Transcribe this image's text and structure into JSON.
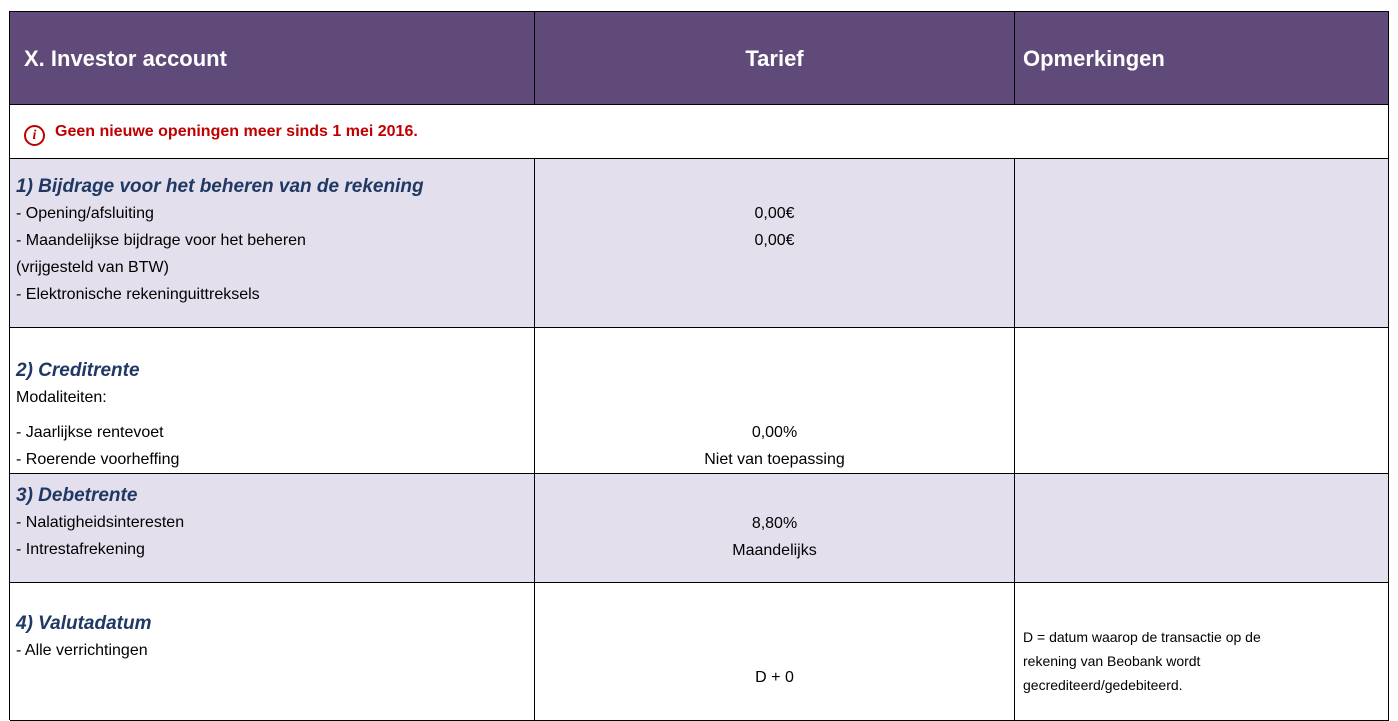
{
  "header": {
    "columns": [
      "X. Investor account",
      "Tarief",
      "Opmerkingen"
    ]
  },
  "notice": "Geen nieuwe openingen meer sinds 1 mei 2016.",
  "rows": [
    {
      "title": "1) Bijdrage voor het beheren van de rekening",
      "lines": [
        "- Opening/afsluiting",
        "- Maandelijkse bijdrage voor het beheren",
        "(vrijgesteld van BTW)",
        "- Elektronische rekeninguittreksels"
      ],
      "tariff": [
        "0,00€",
        "0,00€"
      ],
      "remarks": []
    },
    {
      "title": "2) Creditrente",
      "lines": [
        "Modaliteiten:",
        "- Jaarlijkse rentevoet",
        "- Roerende voorheffing"
      ],
      "tariff": [
        "0,00%",
        "Niet van toepassing"
      ],
      "remarks": []
    },
    {
      "title": "3) Debetrente",
      "lines": [
        "- Nalatigheidsinteresten",
        "- Intrestafrekening"
      ],
      "tariff": [
        "8,80%",
        "Maandelijks"
      ],
      "remarks": []
    },
    {
      "title": "4) Valutadatum",
      "lines": [
        "- Alle verrichtingen"
      ],
      "tariff": [
        "D + 0"
      ],
      "remarks": [
        "D = datum waarop de transactie op de",
        "rekening van Beobank wordt",
        "gecrediteerd/gedebiteerd."
      ]
    }
  ]
}
